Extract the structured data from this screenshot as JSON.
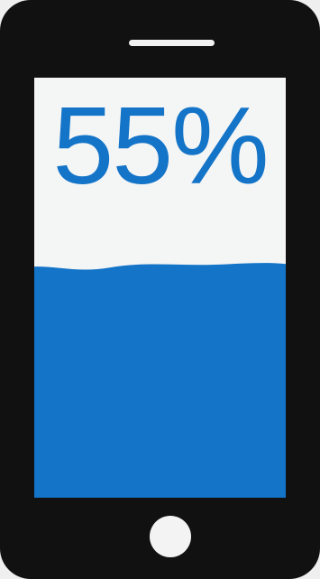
{
  "phone": {
    "screen": {
      "level": {
        "value": 55,
        "unit": "%",
        "display": "55%"
      }
    }
  },
  "colors": {
    "background": "#efefef",
    "phone_body": "#111111",
    "screen_background": "#f4f5f5",
    "fill_accent": "#1374c8",
    "hardware_white": "#f3f3f3"
  },
  "icons": {
    "speaker": "speaker-slot",
    "home_button": "home-button"
  }
}
